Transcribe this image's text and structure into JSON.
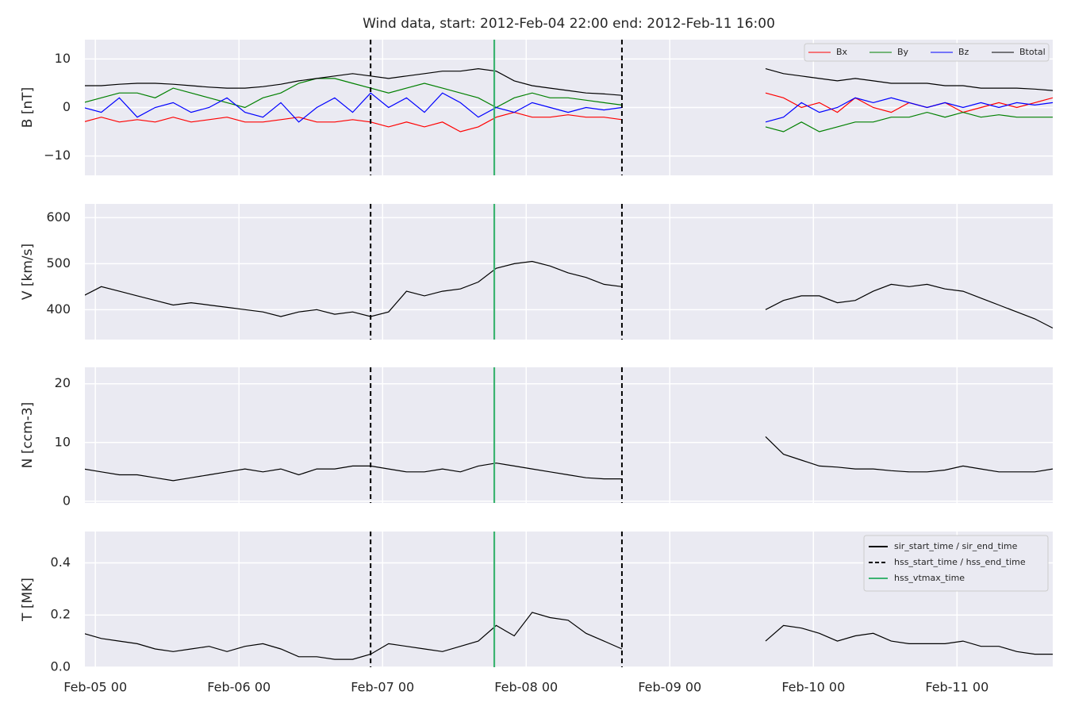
{
  "x_axis": {
    "x": [
      "2012-02-04 22:00",
      "2012-02-05 01:00",
      "2012-02-05 04:00",
      "2012-02-05 07:00",
      "2012-02-05 10:00",
      "2012-02-05 13:00",
      "2012-02-05 16:00",
      "2012-02-05 19:00",
      "2012-02-05 22:00",
      "2012-02-06 01:00",
      "2012-02-06 04:00",
      "2012-02-06 07:00",
      "2012-02-06 10:00",
      "2012-02-06 13:00",
      "2012-02-06 16:00",
      "2012-02-06 19:00",
      "2012-02-06 22:00",
      "2012-02-07 01:00",
      "2012-02-07 04:00",
      "2012-02-07 07:00",
      "2012-02-07 10:00",
      "2012-02-07 13:00",
      "2012-02-07 16:00",
      "2012-02-07 19:00",
      "2012-02-07 22:00",
      "2012-02-08 01:00",
      "2012-02-08 04:00",
      "2012-02-08 07:00",
      "2012-02-08 10:00",
      "2012-02-08 13:00",
      "2012-02-08 16:00",
      "2012-02-08 19:00",
      "2012-02-08 22:00",
      "2012-02-09 01:00",
      "2012-02-09 04:00",
      "2012-02-09 07:00",
      "2012-02-09 10:00",
      "2012-02-09 13:00",
      "2012-02-09 16:00",
      "2012-02-09 19:00",
      "2012-02-09 22:00",
      "2012-02-10 01:00",
      "2012-02-10 04:00",
      "2012-02-10 07:00",
      "2012-02-10 10:00",
      "2012-02-10 13:00",
      "2012-02-10 16:00",
      "2012-02-10 19:00",
      "2012-02-10 22:00",
      "2012-02-11 01:00",
      "2012-02-11 04:00",
      "2012-02-11 07:00",
      "2012-02-11 10:00",
      "2012-02-11 13:00",
      "2012-02-11 16:00"
    ],
    "xlim": [
      "2012-02-04 22:15",
      "2012-02-11 16:00"
    ],
    "xticks": [
      {
        "value": "2012-02-05 00:00",
        "label": "Feb-05 00"
      },
      {
        "value": "2012-02-06 00:00",
        "label": "Feb-06 00"
      },
      {
        "value": "2012-02-07 00:00",
        "label": "Feb-07 00"
      },
      {
        "value": "2012-02-08 00:00",
        "label": "Feb-08 00"
      },
      {
        "value": "2012-02-09 00:00",
        "label": "Feb-09 00"
      },
      {
        "value": "2012-02-10 00:00",
        "label": "Feb-10 00"
      },
      {
        "value": "2012-02-11 00:00",
        "label": "Feb-11 00"
      }
    ],
    "grid": true,
    "vlines": [
      {
        "x": "2012-02-06 22:00",
        "color": "#000000",
        "style": "dashed"
      },
      {
        "x": "2012-02-08 16:00",
        "color": "#000000",
        "style": "dashed"
      },
      {
        "x": "2012-02-07 18:40",
        "color": "#3cb371",
        "style": "solid"
      }
    ]
  },
  "chart_data": [
    {
      "type": "line",
      "title": "Wind data, start: 2012-Feb-04 22:00  end: 2012-Feb-11 16:00",
      "ylabel": "B [nT]",
      "ylim": [
        -14,
        14
      ],
      "yticks": [
        {
          "value": -10,
          "label": "−10"
        },
        0,
        10
      ],
      "legend": "upper right",
      "legend_columns": 4,
      "series": [
        {
          "name": "Bx",
          "color": "#ff0000",
          "values": [
            -3,
            -2,
            -3,
            -2.5,
            -3,
            -2,
            -3,
            -2.5,
            -2,
            -3,
            -3,
            -2.5,
            -2,
            -3,
            -3,
            -2.5,
            -3,
            -4,
            -3,
            -4,
            -3,
            -5,
            -4,
            -2,
            -1,
            -2,
            -2,
            -1.5,
            -2,
            -2,
            -2.5,
            null,
            null,
            null,
            null,
            null,
            null,
            null,
            3,
            2,
            0,
            1,
            -1,
            2,
            0,
            -1,
            1,
            0,
            1,
            -1,
            0,
            1,
            0,
            1,
            2
          ]
        },
        {
          "name": "By",
          "color": "#008000",
          "values": [
            1,
            2,
            3,
            3,
            2,
            4,
            3,
            2,
            1,
            0,
            2,
            3,
            5,
            6,
            6,
            5,
            4,
            3,
            4,
            5,
            4,
            3,
            2,
            0,
            2,
            3,
            2,
            2,
            1.5,
            1,
            0.5,
            null,
            null,
            null,
            null,
            null,
            null,
            null,
            -4,
            -5,
            -3,
            -5,
            -4,
            -3,
            -3,
            -2,
            -2,
            -1,
            -2,
            -1,
            -2,
            -1.5,
            -2,
            -2,
            -2
          ]
        },
        {
          "name": "Bz",
          "color": "#0000ff",
          "values": [
            0,
            -1,
            2,
            -2,
            0,
            1,
            -1,
            0,
            2,
            -1,
            -2,
            1,
            -3,
            0,
            2,
            -1,
            3,
            0,
            2,
            -1,
            3,
            1,
            -2,
            0,
            -1,
            1,
            0,
            -1,
            0,
            -0.5,
            0,
            null,
            null,
            null,
            null,
            null,
            null,
            null,
            -3,
            -2,
            1,
            -1,
            0,
            2,
            1,
            2,
            1,
            0,
            1,
            0,
            1,
            0,
            1,
            0.5,
            1
          ]
        },
        {
          "name": "Btotal",
          "color": "#000000",
          "values": [
            4.5,
            4.5,
            4.8,
            5,
            5,
            4.8,
            4.5,
            4.2,
            4,
            4,
            4.3,
            4.8,
            5.5,
            6,
            6.5,
            7,
            6.5,
            6,
            6.5,
            7,
            7.5,
            7.5,
            8,
            7.5,
            5.5,
            4.5,
            4,
            3.5,
            3,
            2.8,
            2.5,
            null,
            null,
            null,
            null,
            null,
            null,
            null,
            8,
            7,
            6.5,
            6,
            5.5,
            6,
            5.5,
            5,
            5,
            5,
            4.5,
            4.5,
            4,
            4,
            4,
            3.8,
            3.5
          ]
        }
      ]
    },
    {
      "type": "line",
      "ylabel": "V [km/s]",
      "ylim": [
        335,
        630
      ],
      "yticks": [
        400,
        500,
        600
      ],
      "series": [
        {
          "color": "#000000",
          "values": [
            430,
            450,
            440,
            430,
            420,
            410,
            415,
            410,
            405,
            400,
            395,
            385,
            395,
            400,
            390,
            395,
            385,
            395,
            440,
            430,
            440,
            445,
            460,
            490,
            500,
            505,
            495,
            480,
            470,
            455,
            450,
            null,
            null,
            null,
            null,
            null,
            null,
            null,
            400,
            420,
            430,
            430,
            415,
            420,
            440,
            455,
            450,
            455,
            445,
            440,
            425,
            410,
            395,
            380,
            360
          ]
        }
      ]
    },
    {
      "type": "line",
      "ylabel": "N [ccm-3]",
      "ylim": [
        -0.3,
        22.8
      ],
      "yticks": [
        0,
        10,
        20
      ],
      "series": [
        {
          "color": "#000000",
          "values": [
            5.5,
            5,
            4.5,
            4.5,
            4,
            3.5,
            4,
            4.5,
            5,
            5.5,
            5,
            5.5,
            4.5,
            5.5,
            5.5,
            6,
            6,
            5.5,
            5,
            5,
            5.5,
            5,
            6,
            6.5,
            6,
            5.5,
            5,
            4.5,
            4,
            3.8,
            3.8,
            null,
            null,
            null,
            null,
            null,
            null,
            null,
            11,
            8,
            7,
            6,
            5.8,
            5.5,
            5.5,
            5.2,
            5,
            5,
            5.3,
            6,
            5.5,
            5,
            5,
            5,
            5.5
          ]
        }
      ]
    },
    {
      "type": "line",
      "ylabel": "T [MK]",
      "ylim": [
        0,
        0.52
      ],
      "yticks": [
        {
          "value": 0,
          "label": "0.0"
        },
        0.2,
        0.4
      ],
      "legend": "upper right",
      "series": [
        {
          "color": "#000000",
          "values": [
            0.13,
            0.11,
            0.1,
            0.09,
            0.07,
            0.06,
            0.07,
            0.08,
            0.06,
            0.08,
            0.09,
            0.07,
            0.04,
            0.04,
            0.03,
            0.03,
            0.05,
            0.09,
            0.08,
            0.07,
            0.06,
            0.08,
            0.1,
            0.16,
            0.12,
            0.21,
            0.19,
            0.18,
            0.13,
            0.1,
            0.07,
            null,
            null,
            null,
            null,
            null,
            null,
            null,
            0.1,
            0.16,
            0.15,
            0.13,
            0.1,
            0.12,
            0.13,
            0.1,
            0.09,
            0.09,
            0.09,
            0.1,
            0.08,
            0.08,
            0.06,
            0.05,
            0.05
          ]
        }
      ],
      "vline_legend": [
        {
          "name": "sir_start_time / sir_end_time",
          "color": "#000000",
          "style": "solid"
        },
        {
          "name": "hss_start_time / hss_end_time",
          "color": "#000000",
          "style": "dashed"
        },
        {
          "name": "hss_vtmax_time",
          "color": "#3cb371",
          "style": "solid"
        }
      ]
    }
  ]
}
